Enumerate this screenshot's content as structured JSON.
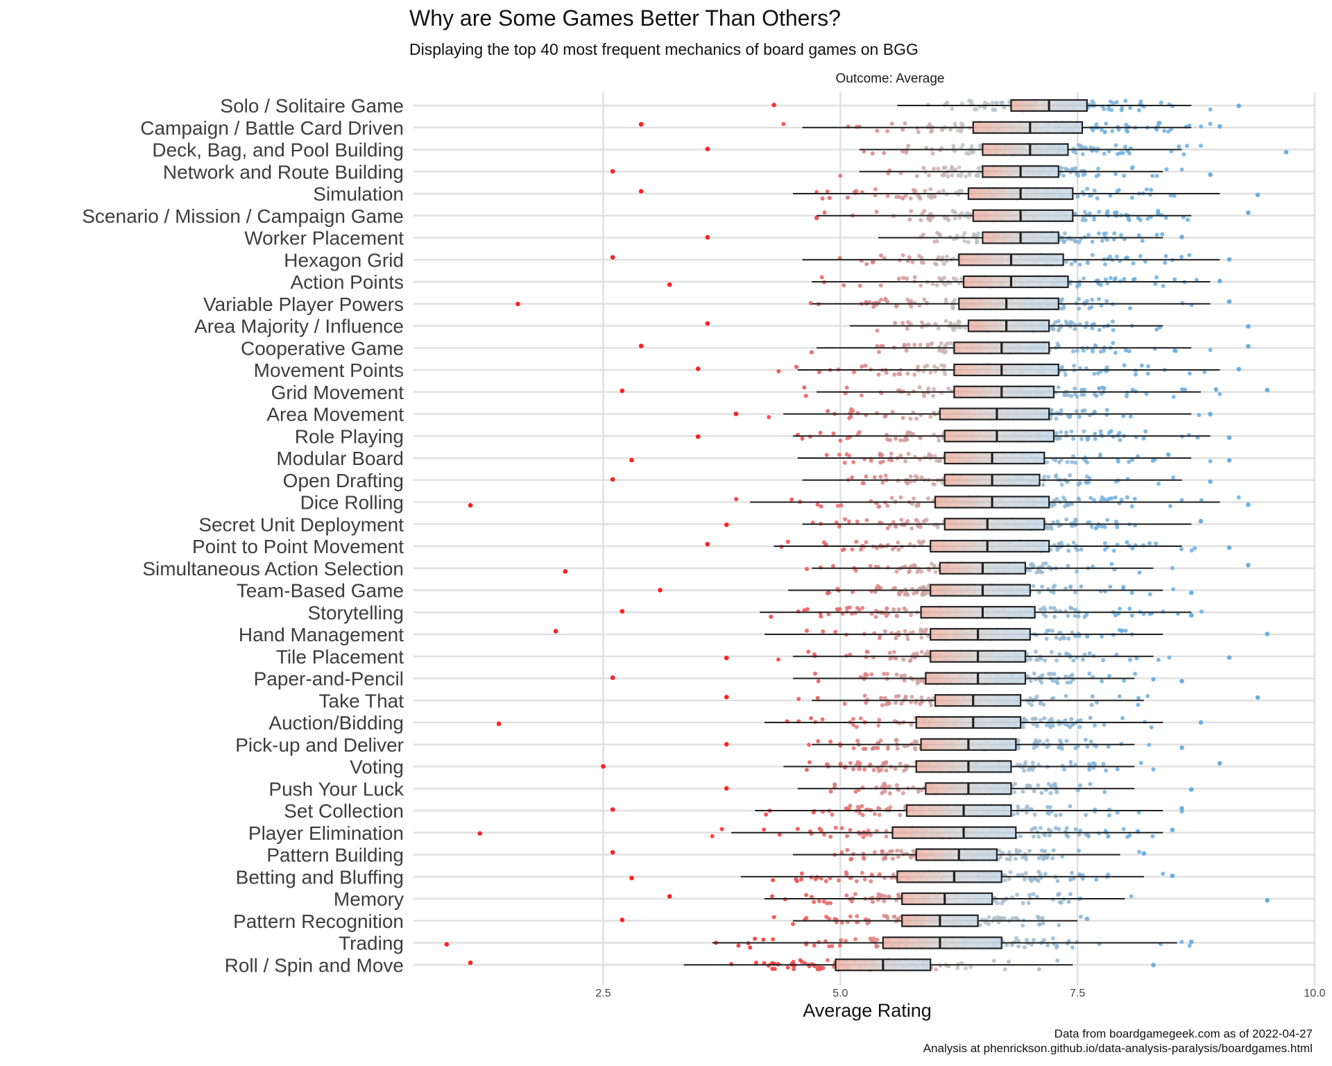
{
  "title": "Why are Some Games Better Than Others?",
  "subtitle": "Displaying the top 40 most frequent mechanics of board games on BGG",
  "caption": {
    "line1": "Data from boardgamegeek.com as of 2022-04-27",
    "line2": "Analysis at phenrickson.github.io/data-analysis-paralysis/boardgames.html"
  },
  "chart_data": {
    "type": "boxplot",
    "facet_strip": "Outcome: Average",
    "xlabel": "Average Rating",
    "ylabel": "",
    "xlim": [
      0.5,
      10.0
    ],
    "xticks": [
      2.5,
      5.0,
      7.5,
      10.0
    ],
    "grid": true,
    "colors": {
      "low": "#ff2020",
      "mid": "#c4c4c4",
      "high": "#6aaee0",
      "box_fill_low": "#f3c0b4",
      "box_fill_high": "#c9dbea",
      "box_stroke": "#222222",
      "gridline": "#e0e0e0"
    },
    "series": [
      {
        "name": "Solo / Solitaire Game",
        "whisker_low": 5.6,
        "q1": 6.8,
        "median": 7.2,
        "q3": 7.6,
        "whisker_high": 8.7,
        "min": 4.3,
        "max": 9.2
      },
      {
        "name": "Campaign / Battle Card Driven",
        "whisker_low": 4.6,
        "q1": 6.4,
        "median": 7.0,
        "q3": 7.55,
        "whisker_high": 8.7,
        "min": 2.9,
        "max": 9.0
      },
      {
        "name": "Deck, Bag, and Pool Building",
        "whisker_low": 5.2,
        "q1": 6.5,
        "median": 7.0,
        "q3": 7.4,
        "whisker_high": 8.6,
        "min": 3.6,
        "max": 9.7
      },
      {
        "name": "Network and Route Building",
        "whisker_low": 5.2,
        "q1": 6.5,
        "median": 6.9,
        "q3": 7.3,
        "whisker_high": 8.4,
        "min": 2.6,
        "max": 8.9
      },
      {
        "name": "Simulation",
        "whisker_low": 4.5,
        "q1": 6.35,
        "median": 6.9,
        "q3": 7.45,
        "whisker_high": 9.0,
        "min": 2.9,
        "max": 9.4
      },
      {
        "name": "Scenario / Mission / Campaign Game",
        "whisker_low": 4.75,
        "q1": 6.4,
        "median": 6.9,
        "q3": 7.45,
        "whisker_high": 8.7,
        "min": 4.75,
        "max": 9.3
      },
      {
        "name": "Worker Placement",
        "whisker_low": 5.4,
        "q1": 6.5,
        "median": 6.9,
        "q3": 7.3,
        "whisker_high": 8.4,
        "min": 3.6,
        "max": 8.6
      },
      {
        "name": "Hexagon Grid",
        "whisker_low": 4.6,
        "q1": 6.25,
        "median": 6.8,
        "q3": 7.35,
        "whisker_high": 9.0,
        "min": 2.6,
        "max": 9.1
      },
      {
        "name": "Action Points",
        "whisker_low": 4.7,
        "q1": 6.3,
        "median": 6.8,
        "q3": 7.4,
        "whisker_high": 8.9,
        "min": 3.2,
        "max": 9.0
      },
      {
        "name": "Variable Player Powers",
        "whisker_low": 4.7,
        "q1": 6.25,
        "median": 6.75,
        "q3": 7.3,
        "whisker_high": 8.9,
        "min": 1.6,
        "max": 9.1
      },
      {
        "name": "Area Majority / Influence",
        "whisker_low": 5.1,
        "q1": 6.35,
        "median": 6.75,
        "q3": 7.2,
        "whisker_high": 8.4,
        "min": 3.6,
        "max": 9.3
      },
      {
        "name": "Cooperative Game",
        "whisker_low": 4.75,
        "q1": 6.2,
        "median": 6.7,
        "q3": 7.2,
        "whisker_high": 8.7,
        "min": 2.9,
        "max": 9.3
      },
      {
        "name": "Movement Points",
        "whisker_low": 4.55,
        "q1": 6.2,
        "median": 6.7,
        "q3": 7.3,
        "whisker_high": 9.0,
        "min": 3.5,
        "max": 9.2
      },
      {
        "name": "Grid Movement",
        "whisker_low": 4.75,
        "q1": 6.2,
        "median": 6.7,
        "q3": 7.25,
        "whisker_high": 8.8,
        "min": 2.7,
        "max": 9.5
      },
      {
        "name": "Area Movement",
        "whisker_low": 4.4,
        "q1": 6.05,
        "median": 6.65,
        "q3": 7.2,
        "whisker_high": 8.7,
        "min": 3.9,
        "max": 8.9
      },
      {
        "name": "Role Playing",
        "whisker_low": 4.5,
        "q1": 6.1,
        "median": 6.65,
        "q3": 7.25,
        "whisker_high": 8.9,
        "min": 3.5,
        "max": 9.1
      },
      {
        "name": "Modular Board",
        "whisker_low": 4.55,
        "q1": 6.1,
        "median": 6.6,
        "q3": 7.15,
        "whisker_high": 8.7,
        "min": 2.8,
        "max": 9.1
      },
      {
        "name": "Open Drafting",
        "whisker_low": 4.6,
        "q1": 6.1,
        "median": 6.6,
        "q3": 7.1,
        "whisker_high": 8.6,
        "min": 2.6,
        "max": 8.9
      },
      {
        "name": "Dice Rolling",
        "whisker_low": 4.05,
        "q1": 6.0,
        "median": 6.6,
        "q3": 7.2,
        "whisker_high": 9.0,
        "min": 1.1,
        "max": 9.3
      },
      {
        "name": "Secret Unit Deployment",
        "whisker_low": 4.6,
        "q1": 6.1,
        "median": 6.55,
        "q3": 7.15,
        "whisker_high": 8.7,
        "min": 3.8,
        "max": 8.8
      },
      {
        "name": "Point to Point Movement",
        "whisker_low": 4.3,
        "q1": 5.95,
        "median": 6.55,
        "q3": 7.2,
        "whisker_high": 8.6,
        "min": 3.6,
        "max": 9.1
      },
      {
        "name": "Simultaneous Action Selection",
        "whisker_low": 4.7,
        "q1": 6.05,
        "median": 6.5,
        "q3": 6.95,
        "whisker_high": 8.3,
        "min": 2.1,
        "max": 9.3
      },
      {
        "name": "Team-Based Game",
        "whisker_low": 4.45,
        "q1": 5.95,
        "median": 6.5,
        "q3": 7.0,
        "whisker_high": 8.4,
        "min": 3.1,
        "max": 8.7
      },
      {
        "name": "Storytelling",
        "whisker_low": 4.15,
        "q1": 5.85,
        "median": 6.5,
        "q3": 7.05,
        "whisker_high": 8.7,
        "min": 2.7,
        "max": 8.7
      },
      {
        "name": "Hand Management",
        "whisker_low": 4.2,
        "q1": 5.95,
        "median": 6.45,
        "q3": 7.0,
        "whisker_high": 8.4,
        "min": 2.0,
        "max": 9.5
      },
      {
        "name": "Tile Placement",
        "whisker_low": 4.5,
        "q1": 5.95,
        "median": 6.45,
        "q3": 6.95,
        "whisker_high": 8.3,
        "min": 3.8,
        "max": 9.1
      },
      {
        "name": "Paper-and-Pencil",
        "whisker_low": 4.5,
        "q1": 5.9,
        "median": 6.45,
        "q3": 6.95,
        "whisker_high": 8.1,
        "min": 2.6,
        "max": 8.6
      },
      {
        "name": "Take That",
        "whisker_low": 4.7,
        "q1": 6.0,
        "median": 6.4,
        "q3": 6.9,
        "whisker_high": 8.2,
        "min": 3.8,
        "max": 9.4
      },
      {
        "name": "Auction/Bidding",
        "whisker_low": 4.2,
        "q1": 5.8,
        "median": 6.4,
        "q3": 6.9,
        "whisker_high": 8.4,
        "min": 1.4,
        "max": 8.8
      },
      {
        "name": "Pick-up and Deliver",
        "whisker_low": 4.7,
        "q1": 5.85,
        "median": 6.35,
        "q3": 6.85,
        "whisker_high": 8.1,
        "min": 3.8,
        "max": 8.6
      },
      {
        "name": "Voting",
        "whisker_low": 4.4,
        "q1": 5.8,
        "median": 6.35,
        "q3": 6.8,
        "whisker_high": 8.1,
        "min": 2.5,
        "max": 9.0
      },
      {
        "name": "Push Your Luck",
        "whisker_low": 4.55,
        "q1": 5.9,
        "median": 6.35,
        "q3": 6.8,
        "whisker_high": 8.1,
        "min": 3.8,
        "max": 8.7
      },
      {
        "name": "Set Collection",
        "whisker_low": 4.1,
        "q1": 5.7,
        "median": 6.3,
        "q3": 6.8,
        "whisker_high": 8.4,
        "min": 2.6,
        "max": 8.6
      },
      {
        "name": "Player Elimination",
        "whisker_low": 3.85,
        "q1": 5.55,
        "median": 6.3,
        "q3": 6.85,
        "whisker_high": 8.4,
        "min": 1.2,
        "max": 8.5
      },
      {
        "name": "Pattern Building",
        "whisker_low": 4.5,
        "q1": 5.8,
        "median": 6.25,
        "q3": 6.65,
        "whisker_high": 7.95,
        "min": 2.6,
        "max": 8.2
      },
      {
        "name": "Betting and Bluffing",
        "whisker_low": 3.95,
        "q1": 5.6,
        "median": 6.2,
        "q3": 6.7,
        "whisker_high": 8.2,
        "min": 2.8,
        "max": 8.5
      },
      {
        "name": "Memory",
        "whisker_low": 4.2,
        "q1": 5.65,
        "median": 6.1,
        "q3": 6.6,
        "whisker_high": 8.0,
        "min": 3.2,
        "max": 9.5
      },
      {
        "name": "Pattern Recognition",
        "whisker_low": 4.5,
        "q1": 5.65,
        "median": 6.05,
        "q3": 6.45,
        "whisker_high": 7.5,
        "min": 2.7,
        "max": 7.6
      },
      {
        "name": "Trading",
        "whisker_low": 3.65,
        "q1": 5.45,
        "median": 6.05,
        "q3": 6.7,
        "whisker_high": 8.55,
        "min": 0.85,
        "max": 8.7
      },
      {
        "name": "Roll / Spin and Move",
        "whisker_low": 3.35,
        "q1": 4.95,
        "median": 5.45,
        "q3": 5.95,
        "whisker_high": 7.45,
        "min": 1.1,
        "max": 8.3
      }
    ]
  }
}
